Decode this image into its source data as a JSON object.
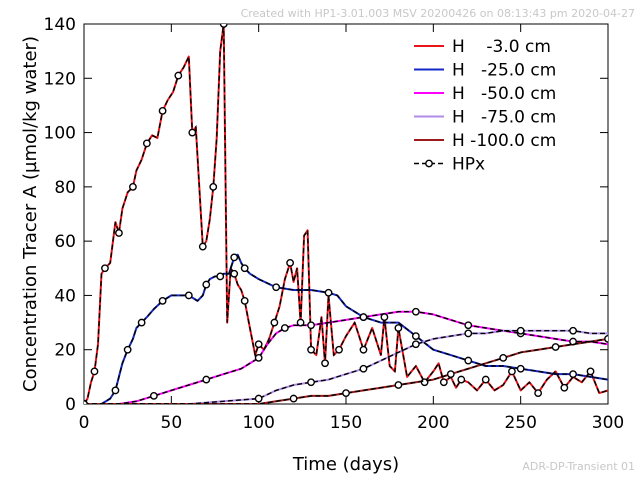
{
  "header_note": "Created with HP1-3.01.003 MSV 20200426 on 08:13:43 pm 2020-04-27",
  "footer_note": "ADR-DP-Transient 01",
  "chart_data": {
    "type": "line",
    "xlabel": "Time (days)",
    "ylabel": "Concentration Tracer A (µmol/kg water)",
    "xlim": [
      0,
      300
    ],
    "ylim": [
      0,
      140
    ],
    "xticks": [
      0,
      50,
      100,
      150,
      200,
      250,
      300
    ],
    "yticks": [
      0,
      20,
      40,
      60,
      80,
      100,
      120,
      140
    ],
    "grid": false,
    "legend_position": "top-right",
    "series": [
      {
        "name": "H    -3.0 cm",
        "color": "#e8151b",
        "dash": "solid",
        "x": [
          0,
          2,
          4,
          6,
          8,
          10,
          12,
          15,
          18,
          20,
          22,
          25,
          28,
          30,
          33,
          36,
          39,
          42,
          45,
          48,
          51,
          54,
          57,
          60,
          62,
          64,
          66,
          68,
          70,
          72,
          74,
          76,
          78,
          80,
          82,
          84,
          86,
          88,
          90,
          92,
          95,
          98,
          100,
          103,
          106,
          109,
          112,
          115,
          118,
          120,
          122,
          124,
          126,
          128,
          130,
          133,
          136,
          138,
          140,
          143,
          146,
          150,
          155,
          160,
          165,
          170,
          172,
          175,
          178,
          180,
          185,
          190,
          195,
          200,
          203,
          206,
          210,
          213,
          216,
          220,
          225,
          230,
          235,
          240,
          245,
          250,
          255,
          260,
          265,
          270,
          275,
          280,
          285,
          290,
          295,
          300
        ],
        "y": [
          0,
          2,
          8,
          12,
          22,
          48,
          50,
          52,
          67,
          63,
          72,
          78,
          80,
          86,
          90,
          96,
          99,
          98,
          108,
          112,
          115,
          121,
          124,
          128,
          100,
          102,
          80,
          58,
          60,
          68,
          80,
          98,
          130,
          140,
          30,
          50,
          48,
          44,
          42,
          38,
          28,
          18,
          22,
          20,
          24,
          30,
          36,
          46,
          52,
          45,
          50,
          30,
          62,
          64,
          20,
          18,
          32,
          15,
          40,
          18,
          20,
          25,
          30,
          20,
          28,
          18,
          32,
          14,
          12,
          28,
          10,
          14,
          8,
          12,
          15,
          8,
          10,
          6,
          9,
          8,
          5,
          9,
          5,
          7,
          12,
          5,
          8,
          4,
          9,
          12,
          6,
          10,
          8,
          12,
          4,
          5
        ]
      },
      {
        "name": "H   -25.0 cm",
        "color": "#1428c8",
        "dash": "solid",
        "x": [
          0,
          10,
          15,
          18,
          20,
          22,
          25,
          28,
          30,
          33,
          36,
          40,
          45,
          50,
          55,
          60,
          65,
          68,
          70,
          72,
          75,
          78,
          80,
          83,
          86,
          88,
          90,
          92,
          95,
          100,
          110,
          120,
          130,
          140,
          145,
          150,
          160,
          170,
          180,
          190,
          200,
          210,
          220,
          230,
          240,
          250,
          260,
          270,
          280,
          290,
          300
        ],
        "y": [
          0,
          0,
          2,
          5,
          10,
          15,
          20,
          24,
          28,
          30,
          32,
          35,
          38,
          40,
          40,
          40,
          38,
          40,
          44,
          46,
          47,
          47,
          48,
          48,
          54,
          55,
          52,
          50,
          48,
          46,
          43,
          42,
          42,
          41,
          40,
          36,
          32,
          30,
          30,
          25,
          20,
          18,
          16,
          14,
          14,
          13,
          12,
          11,
          11,
          10,
          9
        ]
      },
      {
        "name": "H   -50.0 cm",
        "color": "#ff00ff",
        "dash": "solid",
        "x": [
          0,
          20,
          30,
          40,
          50,
          60,
          70,
          80,
          90,
          100,
          105,
          110,
          115,
          120,
          125,
          130,
          140,
          150,
          160,
          170,
          180,
          190,
          200,
          210,
          220,
          230,
          240,
          250,
          260,
          270,
          280,
          290,
          300
        ],
        "y": [
          0,
          0,
          1,
          3,
          5,
          7,
          9,
          11,
          13,
          17,
          22,
          26,
          28,
          29,
          29,
          29,
          30,
          31,
          32,
          33,
          34,
          34,
          33,
          31,
          29,
          28,
          27,
          26,
          25,
          24,
          23,
          23,
          22
        ]
      },
      {
        "name": "H   -75.0 cm",
        "color": "#b08be8",
        "dash": "solid",
        "x": [
          0,
          60,
          80,
          100,
          110,
          120,
          130,
          140,
          150,
          160,
          170,
          180,
          190,
          200,
          210,
          220,
          230,
          240,
          250,
          260,
          270,
          280,
          290,
          300
        ],
        "y": [
          0,
          0,
          1,
          2,
          5,
          7,
          8,
          9,
          11,
          13,
          16,
          19,
          22,
          24,
          25,
          26,
          26,
          27,
          27,
          27,
          27,
          27,
          26,
          26
        ]
      },
      {
        "name": "H -100.0 cm",
        "color": "#9b1b1b",
        "dash": "solid",
        "x": [
          0,
          100,
          110,
          120,
          130,
          140,
          150,
          160,
          170,
          180,
          190,
          200,
          210,
          220,
          230,
          240,
          250,
          260,
          270,
          280,
          290,
          300
        ],
        "y": [
          0,
          0,
          1,
          2,
          3,
          3,
          4,
          5,
          6,
          7,
          8,
          9,
          11,
          13,
          15,
          17,
          19,
          20,
          21,
          22,
          23,
          24
        ]
      },
      {
        "name": "HPx",
        "color": "#000000",
        "dash": "dashed",
        "markers": "circle",
        "overlays": [
          "H    -3.0 cm",
          "H   -25.0 cm",
          "H   -50.0 cm",
          "H   -75.0 cm",
          "H -100.0 cm"
        ]
      }
    ]
  }
}
